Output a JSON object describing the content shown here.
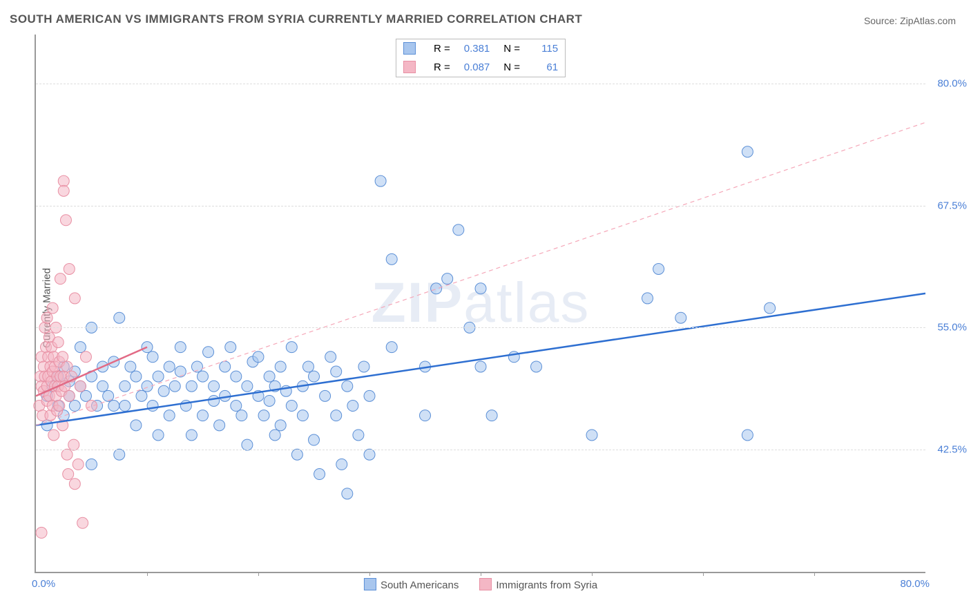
{
  "title": "SOUTH AMERICAN VS IMMIGRANTS FROM SYRIA CURRENTLY MARRIED CORRELATION CHART",
  "source": "Source: ZipAtlas.com",
  "ylabel": "Currently Married",
  "watermark_a": "ZIP",
  "watermark_b": "atlas",
  "chart": {
    "type": "scatter-with-regression",
    "xlim": [
      0,
      80
    ],
    "ylim": [
      30,
      85
    ],
    "yticks": [
      42.5,
      55.0,
      67.5,
      80.0
    ],
    "ytick_labels": [
      "42.5%",
      "55.0%",
      "67.5%",
      "80.0%"
    ],
    "xtick_min_label": "0.0%",
    "xtick_max_label": "80.0%",
    "x_minor_ticks": [
      10,
      20,
      30,
      40,
      50,
      60,
      70
    ],
    "background": "#ffffff",
    "grid_color": "#dddddd",
    "axis_color": "#999999",
    "tick_font_color": "#4a7fd6",
    "point_radius": 8,
    "point_opacity": 0.55,
    "regression_width": 2.5,
    "series": [
      {
        "name": "South Americans",
        "color_fill": "#a8c6ee",
        "color_stroke": "#5b8fd6",
        "line_color": "#2e6fd1",
        "dash": "",
        "R": 0.381,
        "N": 115,
        "trend": {
          "x1": 0,
          "y1": 45.0,
          "x2": 80,
          "y2": 58.5
        },
        "trend_ext": {
          "x1": 0,
          "y1": 45.0,
          "x2": 80,
          "y2": 76.0,
          "color": "#f5a7b8",
          "dash": "6,5",
          "width": 1.2
        },
        "points": [
          [
            1,
            45
          ],
          [
            1,
            48
          ],
          [
            1.5,
            49
          ],
          [
            2,
            47
          ],
          [
            2,
            50
          ],
          [
            2.5,
            46
          ],
          [
            2.5,
            51
          ],
          [
            3,
            48
          ],
          [
            3,
            49.5
          ],
          [
            3.5,
            47
          ],
          [
            3.5,
            50.5
          ],
          [
            4,
            49
          ],
          [
            4,
            53
          ],
          [
            4.5,
            48
          ],
          [
            5,
            50
          ],
          [
            5,
            41
          ],
          [
            5,
            55
          ],
          [
            5.5,
            47
          ],
          [
            6,
            51
          ],
          [
            6,
            49
          ],
          [
            6.5,
            48
          ],
          [
            7,
            51.5
          ],
          [
            7,
            47
          ],
          [
            7.5,
            42
          ],
          [
            7.5,
            56
          ],
          [
            8,
            49
          ],
          [
            8,
            47
          ],
          [
            8.5,
            51
          ],
          [
            9,
            50
          ],
          [
            9,
            45
          ],
          [
            9.5,
            48
          ],
          [
            10,
            53
          ],
          [
            10,
            49
          ],
          [
            10.5,
            47
          ],
          [
            10.5,
            52
          ],
          [
            11,
            50
          ],
          [
            11,
            44
          ],
          [
            11.5,
            48.5
          ],
          [
            12,
            51
          ],
          [
            12,
            46
          ],
          [
            12.5,
            49
          ],
          [
            13,
            50.5
          ],
          [
            13,
            53
          ],
          [
            13.5,
            47
          ],
          [
            14,
            49
          ],
          [
            14,
            44
          ],
          [
            14.5,
            51
          ],
          [
            15,
            46
          ],
          [
            15,
            50
          ],
          [
            15.5,
            52.5
          ],
          [
            16,
            47.5
          ],
          [
            16,
            49
          ],
          [
            16.5,
            45
          ],
          [
            17,
            51
          ],
          [
            17,
            48
          ],
          [
            17.5,
            53
          ],
          [
            18,
            47
          ],
          [
            18,
            50
          ],
          [
            18.5,
            46
          ],
          [
            19,
            49
          ],
          [
            19,
            43
          ],
          [
            19.5,
            51.5
          ],
          [
            20,
            48
          ],
          [
            20,
            52
          ],
          [
            20.5,
            46
          ],
          [
            21,
            50
          ],
          [
            21,
            47.5
          ],
          [
            21.5,
            49
          ],
          [
            21.5,
            44
          ],
          [
            22,
            51
          ],
          [
            22,
            45
          ],
          [
            22.5,
            48.5
          ],
          [
            23,
            53
          ],
          [
            23,
            47
          ],
          [
            23.5,
            42
          ],
          [
            24,
            49
          ],
          [
            24,
            46
          ],
          [
            24.5,
            51
          ],
          [
            25,
            50
          ],
          [
            25,
            43.5
          ],
          [
            25.5,
            40
          ],
          [
            26,
            48
          ],
          [
            26.5,
            52
          ],
          [
            27,
            46
          ],
          [
            27,
            50.5
          ],
          [
            27.5,
            41
          ],
          [
            28,
            49
          ],
          [
            28,
            38
          ],
          [
            28.5,
            47
          ],
          [
            29,
            44
          ],
          [
            29.5,
            51
          ],
          [
            30,
            48
          ],
          [
            30,
            42
          ],
          [
            31,
            70
          ],
          [
            32,
            62
          ],
          [
            32,
            53
          ],
          [
            35,
            51
          ],
          [
            35,
            46
          ],
          [
            36,
            59
          ],
          [
            37,
            60
          ],
          [
            38,
            65
          ],
          [
            39,
            55
          ],
          [
            40,
            59
          ],
          [
            40,
            51
          ],
          [
            41,
            46
          ],
          [
            43,
            52
          ],
          [
            45,
            51
          ],
          [
            50,
            44
          ],
          [
            55,
            58
          ],
          [
            56,
            61
          ],
          [
            58,
            56
          ],
          [
            64,
            73
          ],
          [
            64,
            44
          ],
          [
            66,
            57
          ]
        ]
      },
      {
        "name": "Immigrants from Syria",
        "color_fill": "#f4b7c5",
        "color_stroke": "#e88fa3",
        "line_color": "#e26a85",
        "dash": "",
        "R": 0.087,
        "N": 61,
        "trend": {
          "x1": 0,
          "y1": 48.0,
          "x2": 10,
          "y2": 53.0
        },
        "points": [
          [
            0.3,
            47
          ],
          [
            0.4,
            50
          ],
          [
            0.5,
            49
          ],
          [
            0.5,
            52
          ],
          [
            0.6,
            46
          ],
          [
            0.7,
            48.5
          ],
          [
            0.7,
            51
          ],
          [
            0.8,
            55
          ],
          [
            0.8,
            50
          ],
          [
            0.9,
            53
          ],
          [
            1,
            49
          ],
          [
            1,
            47.5
          ],
          [
            1,
            56
          ],
          [
            1.1,
            52
          ],
          [
            1.1,
            50
          ],
          [
            1.2,
            48
          ],
          [
            1.2,
            54
          ],
          [
            1.3,
            51
          ],
          [
            1.3,
            46
          ],
          [
            1.4,
            49.5
          ],
          [
            1.4,
            53
          ],
          [
            1.5,
            50.5
          ],
          [
            1.5,
            47
          ],
          [
            1.5,
            57
          ],
          [
            1.6,
            52
          ],
          [
            1.6,
            44
          ],
          [
            1.7,
            49
          ],
          [
            1.7,
            51
          ],
          [
            1.8,
            48
          ],
          [
            1.8,
            55
          ],
          [
            1.9,
            50
          ],
          [
            1.9,
            46.5
          ],
          [
            2,
            53.5
          ],
          [
            2,
            49
          ],
          [
            2.1,
            47
          ],
          [
            2.1,
            51.5
          ],
          [
            2.2,
            50
          ],
          [
            2.2,
            60
          ],
          [
            2.3,
            48.5
          ],
          [
            2.4,
            52
          ],
          [
            2.4,
            45
          ],
          [
            2.5,
            50
          ],
          [
            2.5,
            70
          ],
          [
            2.5,
            69
          ],
          [
            2.6,
            49
          ],
          [
            2.7,
            66
          ],
          [
            2.8,
            42
          ],
          [
            2.8,
            51
          ],
          [
            2.9,
            40
          ],
          [
            3,
            48
          ],
          [
            3,
            61
          ],
          [
            3.2,
            50
          ],
          [
            3.4,
            43
          ],
          [
            3.5,
            58
          ],
          [
            3.5,
            39
          ],
          [
            3.8,
            41
          ],
          [
            4,
            49
          ],
          [
            4.2,
            35
          ],
          [
            4.5,
            52
          ],
          [
            5,
            47
          ],
          [
            0.5,
            34
          ]
        ]
      }
    ]
  },
  "legend": {
    "series1_label": "South Americans",
    "series2_label": "Immigrants from Syria"
  },
  "corr_box": {
    "r_label": "R  =",
    "n_label": "N  =",
    "rows": [
      {
        "swatch_fill": "#a8c6ee",
        "swatch_stroke": "#5b8fd6",
        "r": "0.381",
        "n": "115"
      },
      {
        "swatch_fill": "#f4b7c5",
        "swatch_stroke": "#e88fa3",
        "r": "0.087",
        "n": "61"
      }
    ]
  }
}
